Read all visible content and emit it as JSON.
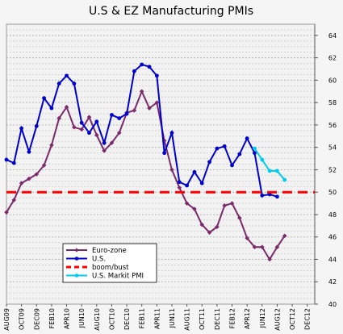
{
  "chart_data": {
    "type": "line",
    "title": "U.S & EZ Manufacturing PMIs",
    "xlabel": "",
    "ylabel": "",
    "ylim": [
      40,
      65
    ],
    "yticks": [
      40,
      42,
      44,
      46,
      48,
      50,
      52,
      54,
      56,
      58,
      60,
      62,
      64
    ],
    "x_tick_labels": [
      "AUG09",
      "OCT09",
      "DEC09",
      "FEB10",
      "APR10",
      "JUN10",
      "AUG10",
      "OCT10",
      "DEC10",
      "FEB11",
      "APR11",
      "JUN11",
      "AUG11",
      "OCT11",
      "DEC11",
      "FEB12",
      "APR12",
      "JUN12",
      "AUG12",
      "OCT12",
      "DEC12"
    ],
    "x_range_months": 41,
    "gridlines": true,
    "legend_position": "bottom-left",
    "series": [
      {
        "name": "Euro-zone",
        "color": "#7b2a6b",
        "marker": "diamond",
        "values": [
          48.2,
          49.3,
          50.8,
          51.2,
          51.6,
          52.4,
          54.2,
          56.6,
          57.6,
          55.8,
          55.6,
          56.7,
          55.1,
          53.7,
          54.4,
          55.3,
          57.1,
          57.3,
          59.0,
          57.5,
          58.0,
          54.6,
          52.0,
          50.4,
          49.0,
          48.5,
          47.1,
          46.4,
          46.9,
          48.8,
          49.0,
          47.7,
          45.9,
          45.1,
          45.1,
          44.0,
          45.1,
          46.1
        ]
      },
      {
        "name": "U.S.",
        "color": "#0000cc",
        "marker": "dot",
        "values": [
          52.9,
          52.6,
          55.7,
          53.6,
          55.9,
          58.4,
          57.5,
          59.7,
          60.4,
          59.7,
          56.2,
          55.3,
          56.3,
          54.4,
          56.9,
          56.6,
          57.0,
          60.8,
          61.4,
          61.2,
          60.4,
          53.5,
          55.3,
          50.9,
          50.6,
          51.8,
          50.8,
          52.7,
          53.9,
          54.1,
          52.4,
          53.4,
          54.8,
          53.5,
          49.7,
          49.8,
          49.6
        ]
      },
      {
        "name": "boom/bust",
        "color": "#ff0000",
        "style": "dashed",
        "values": [
          50,
          50
        ]
      },
      {
        "name": "U.S. Markit PMI",
        "color": "#00ccee",
        "marker": "dot",
        "start_index": 33,
        "values": [
          53.9,
          52.9,
          51.9,
          51.9,
          51.1
        ]
      }
    ]
  }
}
